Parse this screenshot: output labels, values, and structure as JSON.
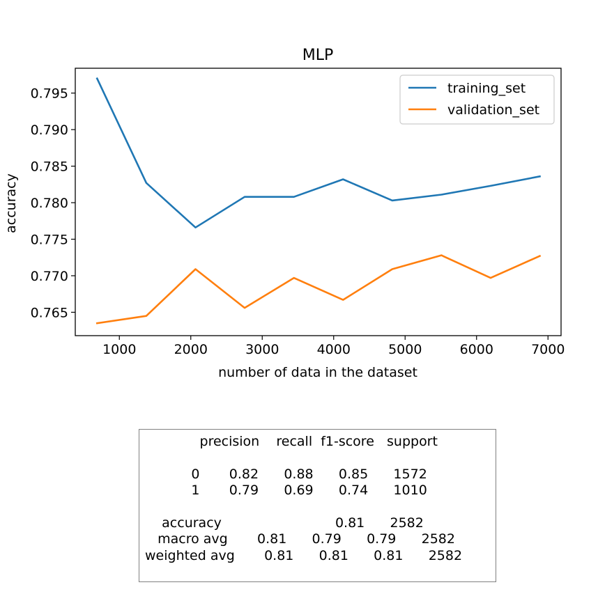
{
  "chart_data": {
    "type": "line",
    "title": "MLP",
    "xlabel": "number of data in the dataset",
    "ylabel": "accuracy",
    "xlim": [
      383,
      7183
    ],
    "ylim": [
      0.7618,
      0.7984
    ],
    "xticks": [
      1000,
      2000,
      3000,
      4000,
      5000,
      6000,
      7000
    ],
    "xtick_labels": [
      "1000",
      "2000",
      "3000",
      "4000",
      "5000",
      "6000",
      "7000"
    ],
    "yticks": [
      0.765,
      0.77,
      0.775,
      0.78,
      0.785,
      0.79,
      0.795
    ],
    "ytick_labels": [
      "0.765",
      "0.770",
      "0.775",
      "0.780",
      "0.785",
      "0.790",
      "0.795"
    ],
    "grid": false,
    "legend": "upper right",
    "x": [
      688,
      1377,
      2066,
      2754,
      3443,
      4131,
      4820,
      5508,
      6197,
      6885
    ],
    "series": [
      {
        "name": "training_set",
        "color": "#1f77b4",
        "values": [
          0.797,
          0.7827,
          0.7766,
          0.7808,
          0.7808,
          0.7832,
          0.7803,
          0.7811,
          0.7823,
          0.7836
        ]
      },
      {
        "name": "validation_set",
        "color": "#ff7f0e",
        "values": [
          0.7635,
          0.7645,
          0.7709,
          0.7656,
          0.7697,
          0.7667,
          0.7709,
          0.7728,
          0.7697,
          0.7727
        ]
      }
    ]
  },
  "report": {
    "text": "             precision    recall  f1-score   support\n\n           0       0.82      0.88      0.85      1572\n           1       0.79      0.69      0.74      1010\n\n    accuracy                           0.81      2582\n   macro avg       0.81      0.79      0.79      2582\nweighted avg       0.81      0.81      0.81      2582"
  }
}
